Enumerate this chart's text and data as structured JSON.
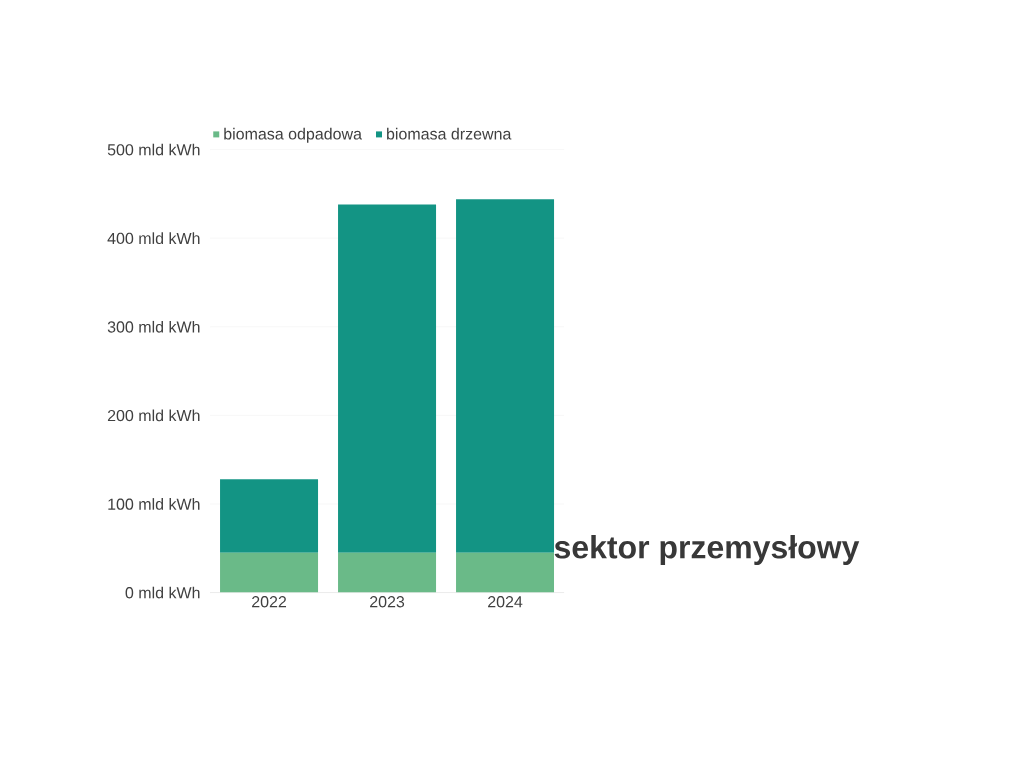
{
  "chart_data": {
    "type": "bar",
    "stacked": true,
    "categories": [
      "2022",
      "2023",
      "2024"
    ],
    "series": [
      {
        "name": "biomasa odpadowa",
        "color": "#6aba88",
        "values": [
          45,
          45,
          45
        ]
      },
      {
        "name": "biomasa drzewna",
        "color": "#139484",
        "values": [
          83,
          393,
          399
        ]
      }
    ],
    "ylim": [
      0,
      500
    ],
    "yticks": [
      {
        "value": 0,
        "label": "0 mld kWh"
      },
      {
        "value": 100,
        "label": "100 mld kWh"
      },
      {
        "value": 200,
        "label": "200 mld kWh"
      },
      {
        "value": 300,
        "label": "300 mld kWh"
      },
      {
        "value": 400,
        "label": "400 mld kWh"
      },
      {
        "value": 500,
        "label": "500 mld kWh"
      }
    ],
    "grid": "y",
    "legend": "top left",
    "annotations": [
      "sektor przemysłowy"
    ]
  }
}
